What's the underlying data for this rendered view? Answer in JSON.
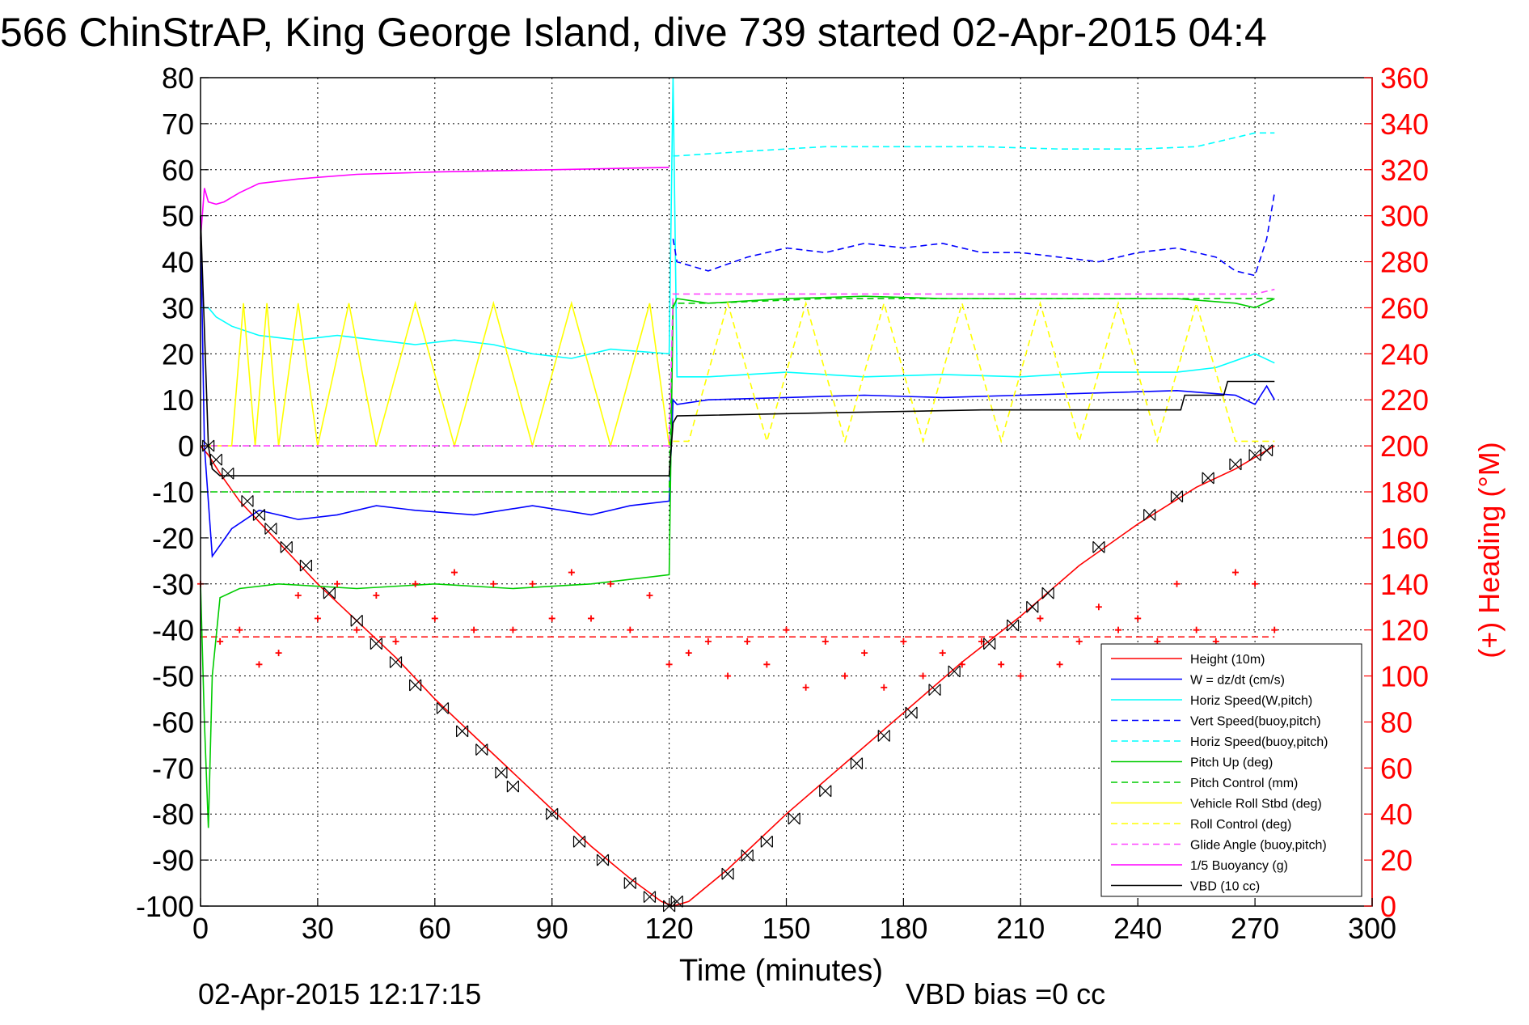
{
  "chart_data": {
    "type": "line",
    "title": "566 ChinStrAP, King George Island, dive 739 started 02-Apr-2015 04:4",
    "xlabel": "Time (minutes)",
    "ylabel_left": "",
    "ylabel_right": "(+) Heading (°M)",
    "xlim": [
      0,
      300
    ],
    "ylim": [
      -100,
      80
    ],
    "ylim_right": [
      0,
      360
    ],
    "x_ticks": [
      0,
      30,
      60,
      90,
      120,
      150,
      180,
      210,
      240,
      270,
      300
    ],
    "y_ticks": [
      -100,
      -90,
      -80,
      -70,
      -60,
      -50,
      -40,
      -30,
      -20,
      -10,
      0,
      10,
      20,
      30,
      40,
      50,
      60,
      70,
      80
    ],
    "y_ticks_right": [
      0,
      20,
      40,
      60,
      80,
      100,
      120,
      140,
      160,
      180,
      200,
      220,
      240,
      260,
      280,
      300,
      320,
      340,
      360
    ],
    "grid": true,
    "legend_position": "bottom-right",
    "footer_left": "02-Apr-2015 12:17:15",
    "footer_right": "VBD bias =0 cc",
    "series": [
      {
        "name": "Height (10m)",
        "color": "#ff0000",
        "dash": "solid",
        "x": [
          0,
          2,
          5,
          10,
          20,
          30,
          40,
          50,
          60,
          70,
          80,
          90,
          100,
          110,
          118,
          121,
          125,
          135,
          150,
          165,
          180,
          195,
          210,
          225,
          240,
          255,
          265,
          275
        ],
        "y": [
          0,
          -2,
          -6,
          -12,
          -21,
          -30,
          -38,
          -46,
          -55,
          -63,
          -71,
          -79,
          -87,
          -94,
          -99,
          -100,
          -99,
          -92,
          -80,
          -69,
          -58,
          -47,
          -37,
          -26,
          -17,
          -9,
          -5,
          0
        ]
      },
      {
        "name": "W = dz/dt (cm/s)",
        "color": "#0000ff",
        "dash": "solid",
        "x": [
          0,
          1,
          3,
          8,
          15,
          25,
          35,
          45,
          55,
          70,
          85,
          100,
          110,
          120,
          121,
          122,
          130,
          150,
          170,
          190,
          210,
          230,
          250,
          265,
          270,
          273,
          275
        ],
        "y": [
          50,
          0,
          -24,
          -18,
          -14,
          -16,
          -15,
          -13,
          -14,
          -15,
          -13,
          -15,
          -13,
          -12,
          10,
          9,
          10,
          10.5,
          11,
          10.5,
          11,
          11.5,
          12,
          11,
          9,
          13,
          10
        ]
      },
      {
        "name": "Horiz Speed(W,pitch)",
        "color": "#00ffff",
        "dash": "solid",
        "x": [
          0,
          2,
          4,
          8,
          15,
          25,
          35,
          45,
          55,
          65,
          75,
          85,
          95,
          105,
          120,
          121,
          122,
          130,
          150,
          170,
          190,
          210,
          230,
          250,
          260,
          270,
          275
        ],
        "y": [
          30,
          30,
          28,
          26,
          24,
          23,
          24,
          23,
          22,
          23,
          22,
          20,
          19,
          21,
          20,
          80,
          15,
          15,
          16,
          15,
          15.5,
          15,
          16,
          16,
          17,
          20,
          18
        ]
      },
      {
        "name": "Vert Speed(buoy,pitch)",
        "color": "#0000ff",
        "dash": "dashed",
        "x": [
          121,
          122,
          130,
          140,
          150,
          160,
          170,
          180,
          190,
          200,
          210,
          220,
          230,
          240,
          250,
          260,
          265,
          270,
          273,
          275
        ],
        "y": [
          45,
          40,
          38,
          41,
          43,
          42,
          44,
          43,
          44,
          42,
          42,
          41,
          40,
          42,
          43,
          41,
          38,
          37,
          45,
          55
        ]
      },
      {
        "name": "Horiz Speed(buoy,pitch)",
        "color": "#00ffff",
        "dash": "dashed",
        "x": [
          121,
          122,
          140,
          160,
          180,
          200,
          220,
          240,
          255,
          265,
          270,
          275
        ],
        "y": [
          63,
          63,
          64,
          65,
          65,
          65,
          64.5,
          64.5,
          65,
          67,
          68,
          68
        ]
      },
      {
        "name": "Pitch Up (deg)",
        "color": "#00cc00",
        "dash": "solid",
        "x": [
          0,
          1,
          2,
          3,
          5,
          10,
          20,
          40,
          60,
          80,
          100,
          120,
          121,
          122,
          130,
          150,
          170,
          190,
          210,
          230,
          250,
          265,
          270,
          275
        ],
        "y": [
          -30,
          -60,
          -83,
          -50,
          -33,
          -31,
          -30,
          -31,
          -30,
          -31,
          -30,
          -28,
          30,
          32,
          31,
          32,
          32.5,
          32,
          32,
          32,
          32,
          31,
          30,
          32
        ]
      },
      {
        "name": "Pitch Control (mm)",
        "color": "#00cc00",
        "dash": "dashed",
        "x": [
          0,
          3,
          10,
          30,
          60,
          90,
          120,
          121,
          130,
          160,
          190,
          220,
          250,
          275
        ],
        "y": [
          -10,
          -10,
          -10,
          -10,
          -10,
          -10,
          -10,
          31,
          31,
          32,
          32,
          32,
          32,
          32
        ]
      },
      {
        "name": "Vehicle Roll Stbd (deg)",
        "color": "#ffff00",
        "dash": "solid",
        "x": [
          0,
          3,
          8,
          11,
          14,
          17,
          20,
          25,
          30,
          38,
          45,
          55,
          65,
          75,
          85,
          95,
          105,
          115,
          120
        ],
        "y": [
          0,
          0,
          0,
          31,
          0,
          31,
          0,
          31,
          0,
          31,
          0,
          31,
          0,
          31,
          0,
          31,
          0,
          31,
          0
        ]
      },
      {
        "name": "Roll Control (deg)",
        "color": "#ffff00",
        "dash": "dashed",
        "x": [
          121,
          125,
          135,
          145,
          155,
          165,
          175,
          185,
          195,
          205,
          215,
          225,
          235,
          245,
          255,
          265,
          275
        ],
        "y": [
          1,
          1,
          31,
          1,
          31,
          1,
          31,
          1,
          31,
          1,
          31,
          1,
          31,
          1,
          31,
          1,
          1
        ]
      },
      {
        "name": "Glide Angle (buoy,pitch)",
        "color": "#ff44ff",
        "dash": "dashed",
        "x": [
          0,
          30,
          60,
          90,
          120,
          121,
          130,
          160,
          190,
          220,
          250,
          270,
          275
        ],
        "y": [
          0,
          0,
          0,
          0,
          0,
          33,
          33,
          33,
          33,
          33,
          33,
          33,
          34
        ]
      },
      {
        "name": "1/5 Buoyancy (g)",
        "color": "#ff00ff",
        "dash": "solid",
        "x": [
          0,
          1,
          2,
          4,
          6,
          10,
          15,
          25,
          40,
          60,
          90,
          120
        ],
        "y": [
          45,
          56,
          53,
          52.5,
          53,
          55,
          57,
          58,
          59,
          59.5,
          60,
          60.5
        ]
      },
      {
        "name": "VBD (10 cc)",
        "color": "#000000",
        "dash": "solid",
        "x": [
          0,
          2,
          3,
          5,
          10,
          60,
          120,
          121,
          122,
          150,
          200,
          251,
          252,
          262,
          263,
          275
        ],
        "y": [
          50,
          0,
          -5,
          -6.5,
          -6.5,
          -6.5,
          -6.5,
          5,
          6.5,
          7,
          7.8,
          7.8,
          11,
          11,
          14,
          14
        ]
      }
    ],
    "heading_series": {
      "name": "Heading",
      "axis": "right",
      "color": "#ff0000",
      "reference_line": 117,
      "x": [
        0,
        5,
        10,
        15,
        20,
        25,
        30,
        35,
        40,
        45,
        50,
        55,
        60,
        65,
        70,
        75,
        80,
        85,
        90,
        95,
        100,
        105,
        110,
        115,
        120,
        125,
        130,
        135,
        140,
        145,
        150,
        155,
        160,
        165,
        170,
        175,
        180,
        185,
        190,
        195,
        200,
        205,
        210,
        215,
        220,
        225,
        230,
        235,
        240,
        245,
        250,
        255,
        260,
        265,
        270,
        275
      ],
      "y": [
        140,
        115,
        120,
        105,
        110,
        135,
        125,
        140,
        120,
        135,
        115,
        140,
        125,
        145,
        120,
        140,
        120,
        140,
        125,
        145,
        125,
        140,
        120,
        135,
        105,
        110,
        115,
        100,
        115,
        105,
        120,
        95,
        115,
        100,
        110,
        95,
        115,
        100,
        110,
        105,
        115,
        105,
        100,
        125,
        105,
        115,
        130,
        120,
        125,
        115,
        140,
        120,
        115,
        145,
        140,
        120
      ]
    },
    "depth_markers": {
      "x": [
        2,
        4,
        7,
        12,
        15,
        18,
        22,
        27,
        33,
        40,
        45,
        50,
        55,
        62,
        67,
        72,
        77,
        80,
        90,
        97,
        103,
        110,
        115,
        120,
        122,
        135,
        140,
        145,
        152,
        160,
        168,
        175,
        182,
        188,
        193,
        202,
        208,
        213,
        217,
        230,
        243,
        250,
        258,
        265,
        270,
        273
      ],
      "y": [
        0,
        -3,
        -6,
        -12,
        -15,
        -18,
        -22,
        -26,
        -32,
        -38,
        -43,
        -47,
        -52,
        -57,
        -62,
        -66,
        -71,
        -74,
        -80,
        -86,
        -90,
        -95,
        -98,
        -100,
        -99,
        -93,
        -89,
        -86,
        -81,
        -75,
        -69,
        -63,
        -58,
        -53,
        -49,
        -43,
        -39,
        -35,
        -32,
        -22,
        -15,
        -11,
        -7,
        -4,
        -2,
        -1
      ]
    }
  }
}
